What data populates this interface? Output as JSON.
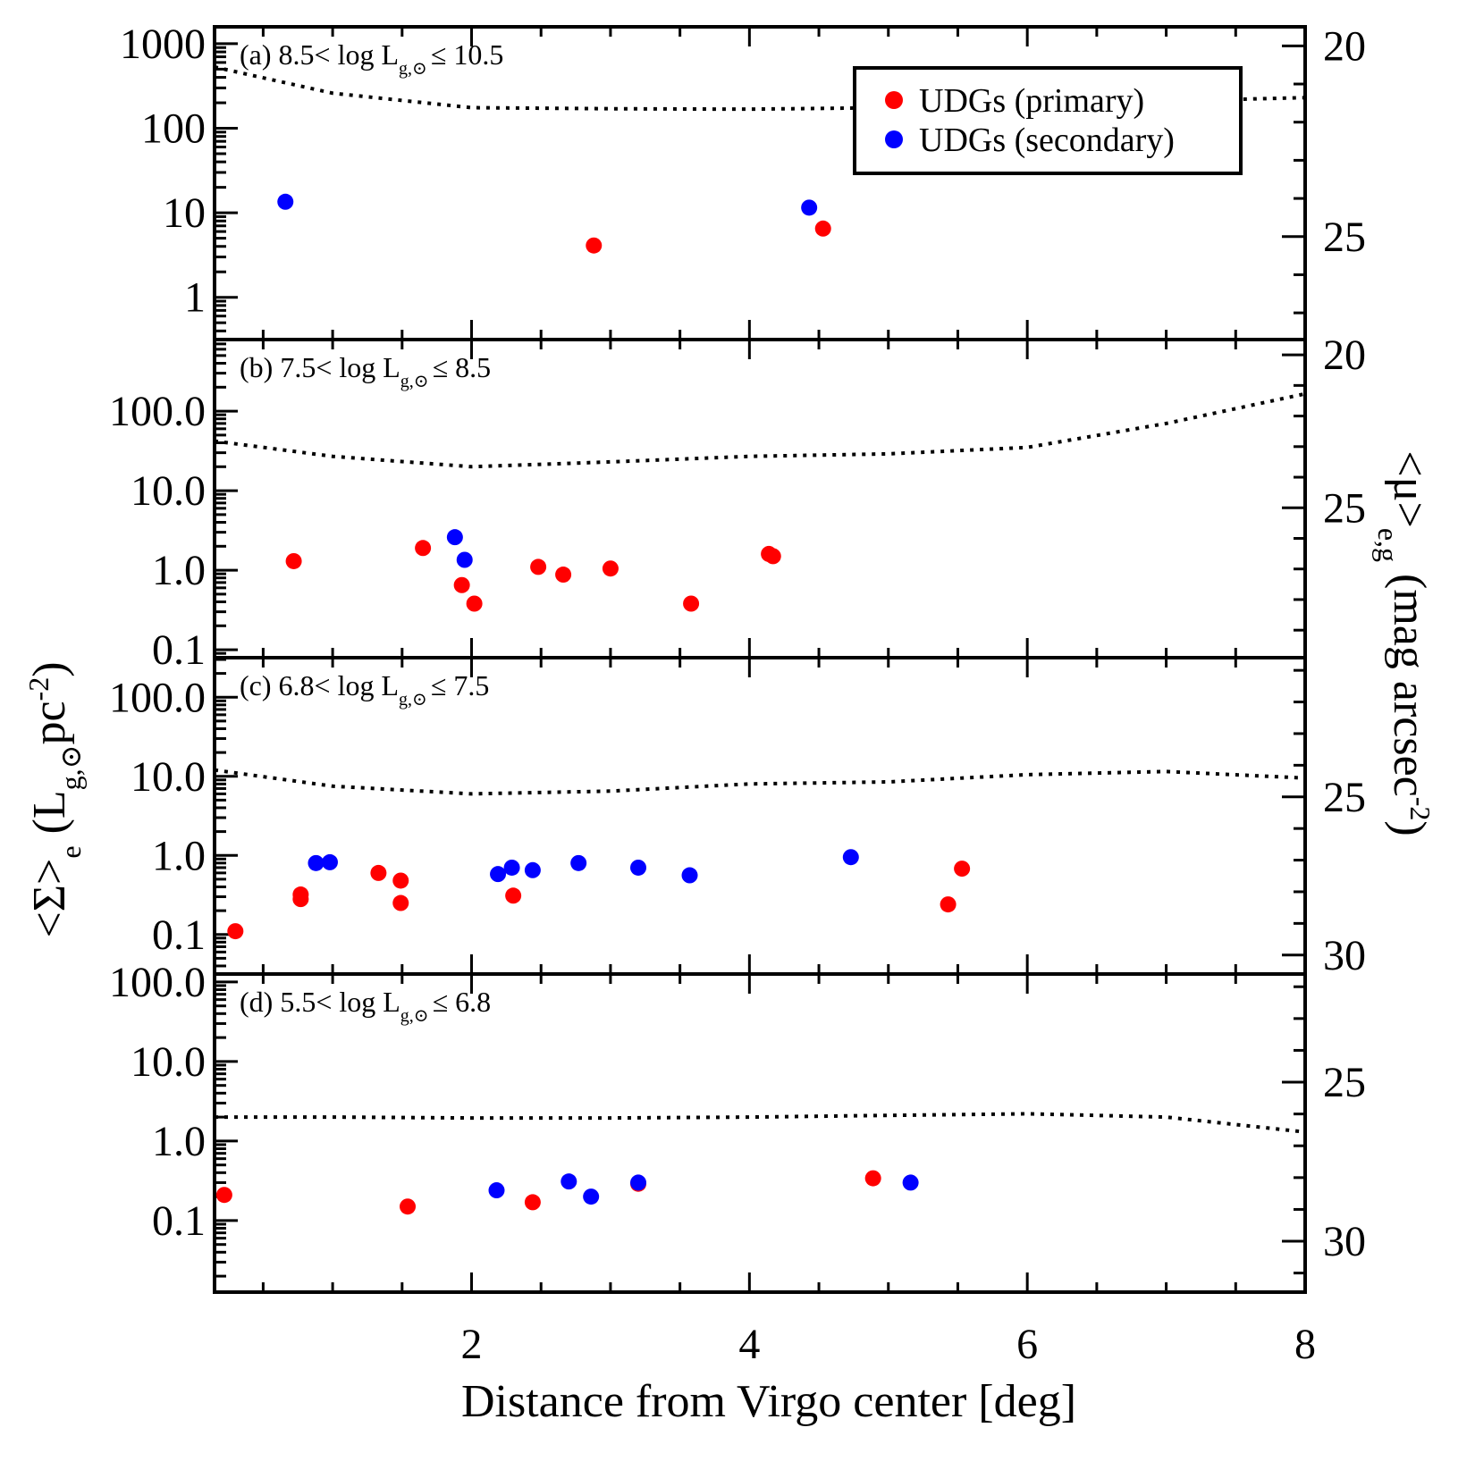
{
  "chart_data": {
    "type": "scatter",
    "xlabel": "Distance from Virgo center [deg]",
    "ylabel_left": "<Σ>e (Lg,⊙pc-2)",
    "ylabel_right": "<μ>e,g (mag arcsec-2)",
    "xlim": [
      0.15,
      8
    ],
    "x_ticks": [
      "2",
      "4",
      "6",
      "8"
    ],
    "legend": [
      {
        "name": "UDGs (primary)",
        "color": "#ff0000"
      },
      {
        "name": "UDGs (secondary)",
        "color": "#0000ff"
      }
    ],
    "colors": {
      "primary": "#ff0000",
      "secondary": "#0000ff",
      "axis": "#000000"
    },
    "panels": [
      {
        "id": "a",
        "label": "(a) 8.5< log L",
        "label_sub": "g,⊙",
        "label_tail": "≤ 10.5",
        "ylim_log": [
          -0.5,
          3.2
        ],
        "y_ticks": [
          "1000",
          "100",
          "10",
          "1"
        ],
        "right_ticks": [
          "20",
          "25"
        ],
        "mu_range": [
          19.5,
          27.7
        ],
        "curve": [
          [
            0.15,
            530
          ],
          [
            1,
            260
          ],
          [
            2,
            175
          ],
          [
            3,
            170
          ],
          [
            4,
            168
          ],
          [
            5,
            175
          ],
          [
            6,
            190
          ],
          [
            7,
            210
          ],
          [
            8,
            230
          ]
        ],
        "primary": [
          [
            2.88,
            4.1
          ],
          [
            4.53,
            6.5
          ]
        ],
        "secondary": [
          [
            0.66,
            13.5
          ],
          [
            4.43,
            11.5
          ]
        ]
      },
      {
        "id": "b",
        "label": "(b) 7.5< log L",
        "label_sub": "g,⊙",
        "label_tail": "≤ 8.5",
        "ylim_log": [
          -1.1,
          2.9
        ],
        "y_ticks": [
          "100.0",
          "10.0",
          "1.0",
          "0.1"
        ],
        "right_ticks": [
          "20",
          "25"
        ],
        "mu_range": [
          19.5,
          29.9
        ],
        "curve": [
          [
            0.15,
            42
          ],
          [
            1,
            27
          ],
          [
            2,
            20
          ],
          [
            3,
            23
          ],
          [
            4,
            27
          ],
          [
            5,
            29
          ],
          [
            6,
            35
          ],
          [
            7,
            70
          ],
          [
            8,
            165
          ]
        ],
        "primary": [
          [
            0.72,
            1.3
          ],
          [
            1.65,
            1.9
          ],
          [
            1.93,
            0.65
          ],
          [
            2.02,
            0.38
          ],
          [
            2.48,
            1.1
          ],
          [
            2.66,
            0.88
          ],
          [
            3.0,
            1.05
          ],
          [
            3.58,
            0.38
          ],
          [
            4.14,
            1.6
          ],
          [
            4.17,
            1.5
          ]
        ],
        "secondary": [
          [
            1.88,
            2.6
          ],
          [
            1.95,
            1.35
          ]
        ]
      },
      {
        "id": "c",
        "label": "(c) 6.8< log L",
        "label_sub": "g,⊙",
        "label_tail": "≤ 7.5",
        "ylim_log": [
          -1.5,
          2.5
        ],
        "y_ticks": [
          "100.0",
          "10.0",
          "1.0",
          "0.1"
        ],
        "right_ticks": [
          "25",
          "30"
        ],
        "mu_range": [
          20.6,
          30.6
        ],
        "curve": [
          [
            0.15,
            12
          ],
          [
            1,
            7.5
          ],
          [
            2,
            6
          ],
          [
            3,
            6.5
          ],
          [
            4,
            8
          ],
          [
            5,
            8.5
          ],
          [
            6,
            10.5
          ],
          [
            7,
            11.5
          ],
          [
            8,
            9.5
          ]
        ],
        "primary": [
          [
            0.3,
            0.11
          ],
          [
            0.77,
            0.32
          ],
          [
            0.77,
            0.28
          ],
          [
            1.33,
            0.6
          ],
          [
            1.49,
            0.48
          ],
          [
            1.49,
            0.25
          ],
          [
            2.3,
            0.31
          ],
          [
            5.43,
            0.24
          ],
          [
            5.53,
            0.68
          ]
        ],
        "secondary": [
          [
            0.88,
            0.8
          ],
          [
            0.98,
            0.82
          ],
          [
            2.19,
            0.58
          ],
          [
            2.29,
            0.7
          ],
          [
            2.44,
            0.65
          ],
          [
            2.77,
            0.8
          ],
          [
            3.2,
            0.7
          ],
          [
            3.57,
            0.56
          ],
          [
            4.73,
            0.95
          ]
        ]
      },
      {
        "id": "d",
        "label": "(d) 5.5< log L",
        "label_sub": "g,⊙",
        "label_tail": "≤ 6.8",
        "ylim_log": [
          -1.9,
          2.1
        ],
        "y_ticks": [
          "100.0",
          "10.0",
          "1.0",
          "0.1"
        ],
        "right_ticks": [
          "25",
          "30"
        ],
        "mu_range": [
          21.6,
          31.6
        ],
        "curve": [
          [
            0.15,
            2.0
          ],
          [
            1,
            2.0
          ],
          [
            2,
            1.95
          ],
          [
            3,
            1.95
          ],
          [
            4,
            2.0
          ],
          [
            5,
            2.1
          ],
          [
            6,
            2.2
          ],
          [
            7,
            2.0
          ],
          [
            8,
            1.3
          ]
        ],
        "primary": [
          [
            0.22,
            0.21
          ],
          [
            1.54,
            0.15
          ],
          [
            2.44,
            0.17
          ],
          [
            3.2,
            0.29
          ],
          [
            4.89,
            0.34
          ]
        ],
        "secondary": [
          [
            2.18,
            0.24
          ],
          [
            2.7,
            0.31
          ],
          [
            2.86,
            0.2
          ],
          [
            3.2,
            0.3
          ],
          [
            5.16,
            0.3
          ]
        ]
      }
    ]
  }
}
